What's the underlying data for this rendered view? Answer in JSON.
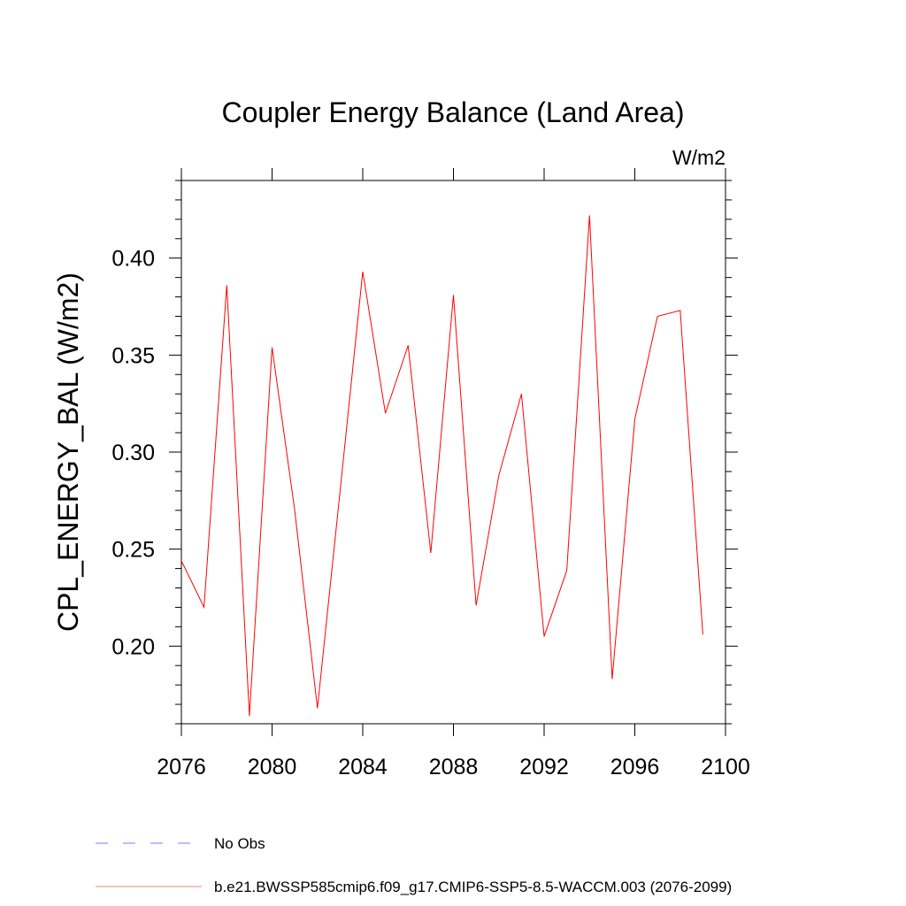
{
  "chart_data": {
    "type": "line",
    "title": "Coupler Energy Balance (Land Area)",
    "units_label": "W/m2",
    "ylabel": "CPL_ENERGY_BAL  (W/m2)",
    "xlabel": "",
    "xlim": [
      2076,
      2100
    ],
    "ylim": [
      0.16,
      0.44
    ],
    "x_ticks": [
      2076,
      2080,
      2084,
      2088,
      2092,
      2096,
      2100
    ],
    "x_tick_labels": [
      "2076",
      "2080",
      "2084",
      "2088",
      "2092",
      "2096",
      "2100"
    ],
    "y_ticks": [
      0.2,
      0.25,
      0.3,
      0.35,
      0.4
    ],
    "y_tick_labels": [
      "0.20",
      "0.25",
      "0.30",
      "0.35",
      "0.40"
    ],
    "grid": false,
    "legend_placement": "bottom",
    "series": [
      {
        "name": "b.e21.BWSSP585cmip6.f09_g17.CMIP6-SSP5-8.5-WACCM.003 (2076-2099)",
        "color": "#ff0000",
        "legend_color": "#f08080",
        "x": [
          2076,
          2077,
          2078,
          2079,
          2080,
          2081,
          2082,
          2083,
          2084,
          2085,
          2086,
          2087,
          2088,
          2089,
          2090,
          2091,
          2092,
          2093,
          2094,
          2095,
          2096,
          2097,
          2098,
          2099
        ],
        "y": [
          0.244,
          0.22,
          0.386,
          0.164,
          0.354,
          0.27,
          0.168,
          0.28,
          0.393,
          0.32,
          0.355,
          0.248,
          0.381,
          0.221,
          0.288,
          0.33,
          0.205,
          0.239,
          0.422,
          0.183,
          0.317,
          0.37,
          0.373,
          0.206
        ]
      }
    ],
    "legend": [
      {
        "label": "No Obs",
        "color": "#7b7bff",
        "style": "dashed"
      },
      {
        "label": "b.e21.BWSSP585cmip6.f09_g17.CMIP6-SSP5-8.5-WACCM.003 (2076-2099)",
        "color": "#f08080",
        "style": "solid"
      }
    ]
  }
}
